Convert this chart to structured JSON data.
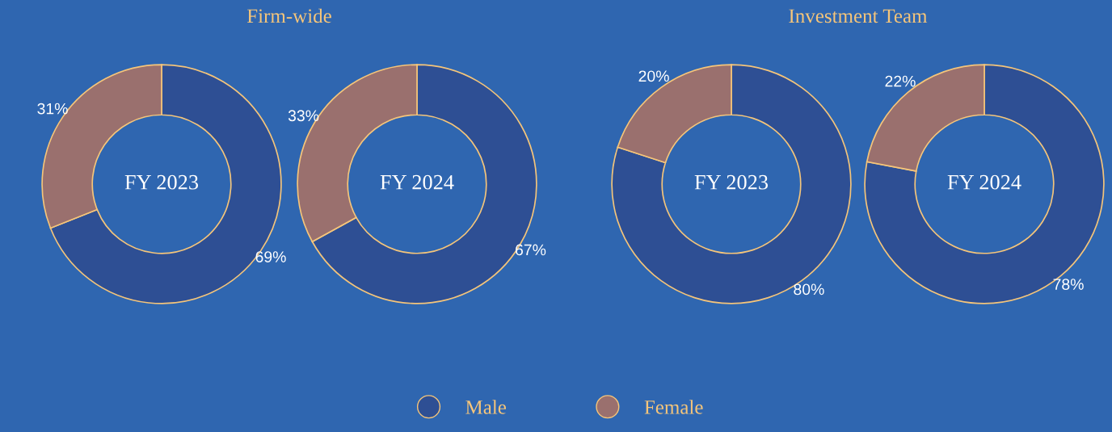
{
  "chart_data": [
    {
      "type": "donut",
      "title": "Firm-wide",
      "annotations": [
        "FY 2023"
      ],
      "categories": [
        "Male",
        "Female"
      ],
      "values": [
        69,
        31
      ],
      "value_labels": [
        "69%",
        "31%"
      ],
      "colors": [
        "#2e4f94",
        "#9a706e"
      ],
      "legend": "bottom"
    },
    {
      "type": "donut",
      "annotations": [
        "FY 2024"
      ],
      "categories": [
        null,
        null
      ],
      "values": [
        67,
        33
      ],
      "value_labels": [
        "67%",
        "33%"
      ],
      "colors": [
        "#2e4f94",
        "#9a706e"
      ]
    },
    {
      "type": "donut",
      "title": "Investment Team",
      "annotations": [
        "FY 2023"
      ],
      "categories": [
        null,
        null
      ],
      "values": [
        80,
        20
      ],
      "value_labels": [
        "80%",
        "20%"
      ],
      "colors": [
        "#2e4f94",
        "#9a706e"
      ]
    },
    {
      "type": "donut",
      "annotations": [
        "FY 2024"
      ],
      "categories": [
        null,
        null
      ],
      "values": [
        78,
        22
      ],
      "value_labels": [
        "78%",
        "22%"
      ],
      "colors": [
        "#2e4f94",
        "#9a706e"
      ]
    }
  ]
}
